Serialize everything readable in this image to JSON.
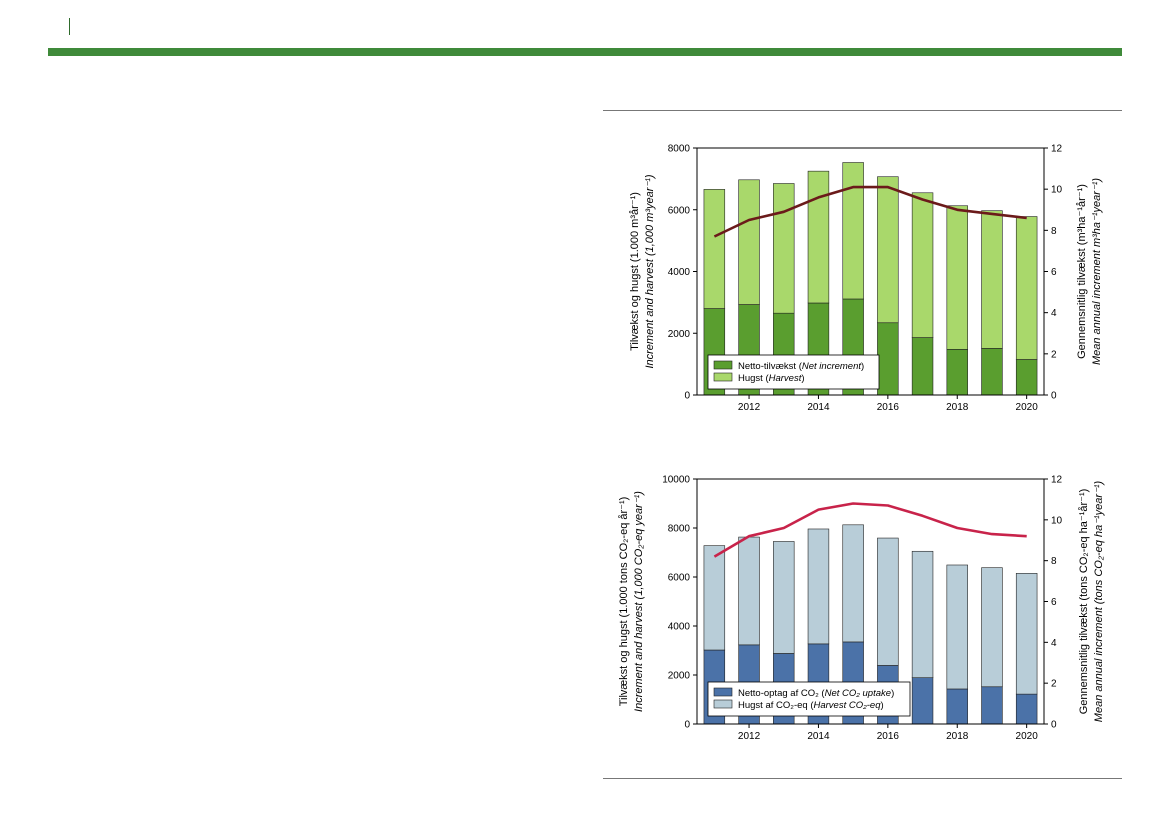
{
  "colors": {
    "brand_green": "#3f8a3a",
    "net_increment": "#5a9e2f",
    "harvest": "#a9d86b",
    "increment_line": "#6b1a1a",
    "net_co2": "#4b72a8",
    "harvest_co2": "#b8cdd8",
    "co2_line": "#c8234a"
  },
  "chart_data": [
    {
      "type": "bar",
      "stacked": true,
      "x": [
        2011,
        2012,
        2013,
        2014,
        2015,
        2016,
        2017,
        2018,
        2019,
        2020
      ],
      "x_tick_labels": [
        "2012",
        "2014",
        "2016",
        "2018",
        "2020"
      ],
      "ylabel_line1": "Tilvækst og hugst (1.000 m³år⁻¹)",
      "ylabel_line2": "Increment and harvest (1,000 m³year⁻¹)",
      "y2label_line1": "Gennemsnitlig tilvækst (m³ha⁻¹år⁻¹)",
      "y2label_line2": "Mean annual increment m³ha⁻¹year⁻¹)",
      "ylim": [
        0,
        8000
      ],
      "y_ticks": [
        "0",
        "2000",
        "4000",
        "6000",
        "8000"
      ],
      "y2lim": [
        0,
        12
      ],
      "y2_ticks": [
        "0",
        "2",
        "4",
        "6",
        "8",
        "10",
        "12"
      ],
      "legend_position": "bottom-left",
      "series": [
        {
          "legend_main": "Netto-tilvækst (",
          "legend_italic": "Net increment",
          "legend_end": ")",
          "axis": "left",
          "values": [
            2800,
            2930,
            2650,
            2980,
            3110,
            2340,
            1860,
            1480,
            1510,
            1150
          ]
        },
        {
          "legend_main": "Hugst (",
          "legend_italic": "Harvest",
          "legend_end": ")",
          "axis": "left",
          "values": [
            3860,
            4040,
            4200,
            4270,
            4420,
            4730,
            4690,
            4650,
            4460,
            4630
          ]
        },
        {
          "type": "line",
          "axis": "right",
          "values": [
            7.7,
            8.5,
            8.9,
            9.6,
            10.1,
            10.1,
            9.5,
            9.0,
            8.8,
            8.6
          ]
        }
      ]
    },
    {
      "type": "bar",
      "stacked": true,
      "x": [
        2011,
        2012,
        2013,
        2014,
        2015,
        2016,
        2017,
        2018,
        2019,
        2020
      ],
      "x_tick_labels": [
        "2012",
        "2014",
        "2016",
        "2018",
        "2020"
      ],
      "ylabel_line1": "Tilvækst og hugst (1.000 tons CO₂-eq år⁻¹)",
      "ylabel_line2": "Increment and harvest (1,000 CO₂-eq year⁻¹)",
      "y2label_line1": "Gennemsnitlig tilvækst (tons CO₂-eq ha⁻¹år⁻¹)",
      "y2label_line2": "Mean annual increment (tons CO₂-eq ha⁻¹year⁻¹)",
      "ylim": [
        0,
        10000
      ],
      "y_ticks": [
        "0",
        "2000",
        "4000",
        "6000",
        "8000",
        "10000"
      ],
      "y2lim": [
        0,
        12
      ],
      "y2_ticks": [
        "0",
        "2",
        "4",
        "6",
        "8",
        "10",
        "12"
      ],
      "legend_position": "bottom-left",
      "series": [
        {
          "legend_main": "Netto-optag af CO₂ (",
          "legend_italic": "Net CO₂ uptake",
          "legend_end": ")",
          "axis": "left",
          "values": [
            3020,
            3230,
            2880,
            3270,
            3350,
            2390,
            1890,
            1430,
            1520,
            1220
          ]
        },
        {
          "legend_main": "Hugst af CO₂-eq (",
          "legend_italic": "Harvest CO₂-eq",
          "legend_end": ")",
          "axis": "left",
          "values": [
            4260,
            4400,
            4570,
            4690,
            4780,
            5200,
            5160,
            5060,
            4860,
            4930
          ]
        },
        {
          "type": "line",
          "axis": "right",
          "values": [
            8.2,
            9.2,
            9.6,
            10.5,
            10.8,
            10.7,
            10.2,
            9.6,
            9.3,
            9.2
          ]
        }
      ]
    }
  ]
}
